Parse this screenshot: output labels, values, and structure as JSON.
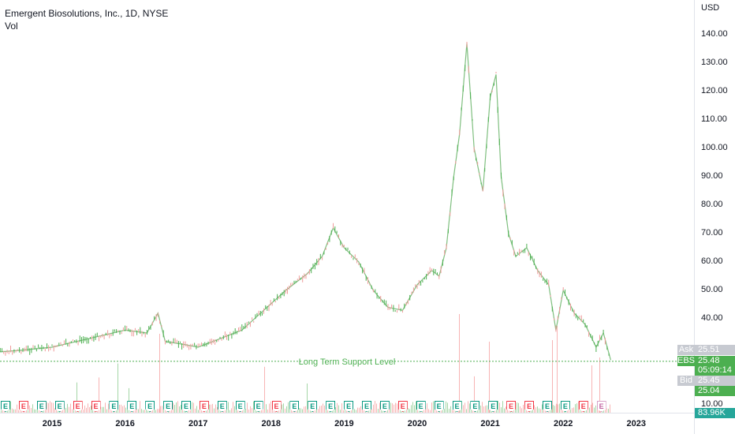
{
  "legend": {
    "symbol_line": "Emergent Biosolutions, Inc., 1D, NYSE",
    "volume_label": "Vol"
  },
  "price_axis": {
    "currency": "USD",
    "ticks": [
      "140.00",
      "130.00",
      "120.00",
      "110.00",
      "100.00",
      "90.00",
      "80.00",
      "70.00",
      "60.00",
      "50.00",
      "40.00"
    ]
  },
  "price_tags": {
    "ask_label": "Ask",
    "ask_value": "25.51",
    "symbol_label": "EBS",
    "last_value": "25.48",
    "countdown": "05:09:14",
    "bid_label": "Bid",
    "bid_value": "25.45",
    "support_value": "25.04",
    "volume_axis_tick": "10.00",
    "volume_value": "83.96K"
  },
  "annotation": {
    "support_line_text": "Long Term Support Level",
    "support_price": 25.04
  },
  "time_axis": [
    "2015",
    "2016",
    "2017",
    "2018",
    "2019",
    "2020",
    "2021",
    "2022",
    "2023"
  ],
  "earnings_badges": [
    {
      "letter": "E",
      "kind": "pos"
    },
    {
      "letter": "E",
      "kind": "neg"
    },
    {
      "letter": "E",
      "kind": "pos"
    },
    {
      "letter": "E",
      "kind": "pos"
    },
    {
      "letter": "E",
      "kind": "neg"
    },
    {
      "letter": "E",
      "kind": "neg"
    },
    {
      "letter": "E",
      "kind": "pos"
    },
    {
      "letter": "E",
      "kind": "pos"
    },
    {
      "letter": "E",
      "kind": "pos"
    },
    {
      "letter": "E",
      "kind": "pos"
    },
    {
      "letter": "E",
      "kind": "pos"
    },
    {
      "letter": "E",
      "kind": "neg"
    },
    {
      "letter": "E",
      "kind": "pos"
    },
    {
      "letter": "E",
      "kind": "pos"
    },
    {
      "letter": "E",
      "kind": "pos"
    },
    {
      "letter": "E",
      "kind": "neg"
    },
    {
      "letter": "E",
      "kind": "pos"
    },
    {
      "letter": "E",
      "kind": "pos"
    },
    {
      "letter": "E",
      "kind": "pos"
    },
    {
      "letter": "E",
      "kind": "pos"
    },
    {
      "letter": "E",
      "kind": "pos"
    },
    {
      "letter": "E",
      "kind": "pos"
    },
    {
      "letter": "E",
      "kind": "neg"
    },
    {
      "letter": "E",
      "kind": "pos"
    },
    {
      "letter": "E",
      "kind": "pos"
    },
    {
      "letter": "E",
      "kind": "pos"
    },
    {
      "letter": "E",
      "kind": "pos"
    },
    {
      "letter": "E",
      "kind": "pos"
    },
    {
      "letter": "E",
      "kind": "neg"
    },
    {
      "letter": "E",
      "kind": "neg"
    },
    {
      "letter": "E",
      "kind": "pos"
    },
    {
      "letter": "E",
      "kind": "pos"
    },
    {
      "letter": "E",
      "kind": "neg"
    },
    {
      "letter": "E",
      "kind": "fut"
    }
  ],
  "chart_data": {
    "type": "line",
    "title": "Emergent Biosolutions, Inc., 1D, NYSE",
    "ylabel": "USD",
    "ylim": [
      10,
      145
    ],
    "x": [
      2014.1,
      2014.6,
      2015.0,
      2015.5,
      2016.0,
      2016.3,
      2016.45,
      2016.55,
      2016.8,
      2017.0,
      2017.3,
      2017.6,
      2017.9,
      2018.2,
      2018.5,
      2018.7,
      2018.85,
      2019.0,
      2019.2,
      2019.4,
      2019.6,
      2019.8,
      2020.0,
      2020.2,
      2020.3,
      2020.4,
      2020.5,
      2020.58,
      2020.68,
      2020.78,
      2020.9,
      2021.0,
      2021.08,
      2021.15,
      2021.25,
      2021.35,
      2021.5,
      2021.65,
      2021.8,
      2021.9,
      2022.0,
      2022.15,
      2022.3,
      2022.45,
      2022.55,
      2022.65
    ],
    "series": [
      {
        "values": [
          28,
          29,
          30,
          33,
          36,
          35,
          42,
          32,
          31,
          30,
          33,
          36,
          43,
          50,
          56,
          62,
          72,
          65,
          60,
          50,
          44,
          43,
          52,
          57,
          55,
          65,
          90,
          105,
          137,
          100,
          85,
          118,
          126,
          90,
          70,
          62,
          65,
          57,
          52,
          36,
          50,
          42,
          38,
          30,
          35,
          25.48
        ]
      }
    ],
    "support_level": 25.04,
    "grid": "off",
    "legend": "top-left"
  }
}
